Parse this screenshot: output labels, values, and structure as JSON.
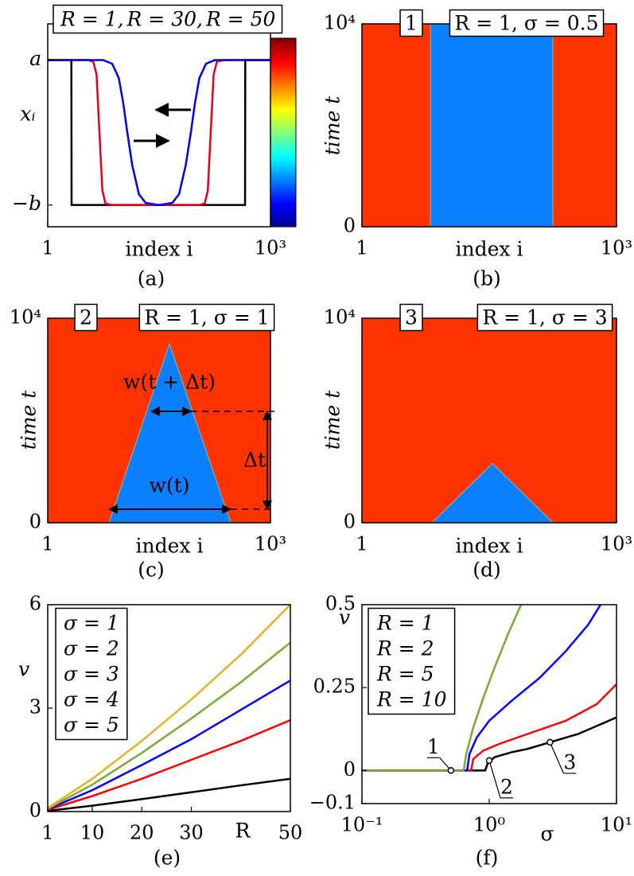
{
  "chart_data": [
    {
      "type": "line",
      "caption": "(a)",
      "xlabel": "index i",
      "ylabel": "xᵢ",
      "xlim": [
        1,
        1000
      ],
      "xticks": [
        1,
        {
          "value": 1000,
          "label": "10³"
        }
      ],
      "ylim": [
        -1.3,
        1.5
      ],
      "yticks": [
        {
          "value": 1,
          "label": "a"
        },
        {
          "value": -1,
          "label": "−b"
        }
      ],
      "ytick_colors": [
        "#e8001a",
        "#2a7fd4"
      ],
      "legend": "inline-top",
      "series": [
        {
          "name": "R = 1,",
          "color": "#000000",
          "x": [
            1,
            107,
            108,
            886,
            887,
            1000
          ],
          "values": [
            1,
            1,
            -1,
            -1,
            1,
            1
          ]
        },
        {
          "name": "R = 30,",
          "color": "#e8001a",
          "x": [
            1,
            180,
            205,
            220,
            233,
            246,
            260,
            290,
            680,
            705,
            719,
            732,
            745,
            760,
            790,
            1000
          ],
          "values": [
            1,
            1,
            0.98,
            0.8,
            0,
            -0.8,
            -0.98,
            -1,
            -1,
            -0.98,
            -0.8,
            0,
            0.8,
            0.98,
            1,
            1
          ]
        },
        {
          "name": "R = 50",
          "color": "#0000ee",
          "x": [
            1,
            250,
            290,
            320,
            340,
            358,
            380,
            410,
            440,
            500,
            560,
            590,
            620,
            643,
            661,
            681,
            711,
            750,
            1000
          ],
          "values": [
            1,
            1,
            0.95,
            0.75,
            0.4,
            0,
            -0.45,
            -0.85,
            -0.97,
            -1,
            -0.97,
            -0.85,
            -0.45,
            0,
            0.4,
            0.75,
            0.95,
            1,
            1
          ]
        }
      ]
    },
    {
      "type": "region",
      "caption": "(b)",
      "xlabel": "index i",
      "ylabel": "time t",
      "labels": [
        "1",
        "R = 1, σ = 0.5"
      ],
      "xlim": [
        1,
        1000
      ],
      "xticks": [
        1,
        {
          "value": 1000,
          "label": "10³"
        }
      ],
      "ylim": [
        0,
        10000
      ],
      "yticks": [
        0,
        {
          "value": 10000,
          "label": "10⁴"
        }
      ],
      "background_color": "#ff3300",
      "regions": [
        {
          "color": "#0a80ff",
          "x": [
            270,
            750,
            750,
            270
          ],
          "y": [
            0,
            0,
            10000,
            10000
          ]
        }
      ]
    },
    {
      "type": "region",
      "caption": "(c)",
      "xlabel": "index i",
      "ylabel": "time t",
      "labels": [
        "2",
        "R = 1, σ = 1"
      ],
      "annotations": [
        "w(t + Δt)",
        "w(t)",
        "Δt"
      ],
      "xlim": [
        1,
        1000
      ],
      "xticks": [
        1,
        {
          "value": 1000,
          "label": "10³"
        }
      ],
      "ylim": [
        0,
        10000
      ],
      "yticks": [
        0,
        {
          "value": 10000,
          "label": "10⁴"
        }
      ],
      "background_color": "#ff3300",
      "regions": [
        {
          "color": "#0a80ff",
          "x": [
            276,
            822,
            547
          ],
          "y": [
            0,
            0,
            8750
          ]
        }
      ]
    },
    {
      "type": "region",
      "caption": "(d)",
      "xlabel": "index i",
      "ylabel": "time t",
      "labels": [
        "3",
        "R = 1, σ = 3"
      ],
      "xlim": [
        1,
        1000
      ],
      "xticks": [
        1,
        {
          "value": 1000,
          "label": "10³"
        }
      ],
      "ylim": [
        0,
        10000
      ],
      "yticks": [
        0,
        {
          "value": 10000,
          "label": "10⁴"
        }
      ],
      "background_color": "#ff3300",
      "regions": [
        {
          "color": "#0a80ff",
          "x": [
            276,
            751,
            513
          ],
          "y": [
            0,
            0,
            2900
          ]
        }
      ]
    },
    {
      "type": "line",
      "caption": "(e)",
      "xlabel": "R",
      "ylabel": "v",
      "legend": "upper left",
      "xlim": [
        1,
        50
      ],
      "xticks": [
        1,
        10,
        20,
        30,
        50
      ],
      "ylim": [
        0,
        6
      ],
      "yticks": [
        0,
        3,
        6
      ],
      "x": [
        1,
        10,
        20,
        30,
        40,
        50
      ],
      "series": [
        {
          "name": "σ = 1",
          "color": "#000000",
          "values": [
            0.02,
            0.17,
            0.36,
            0.56,
            0.76,
            0.95
          ]
        },
        {
          "name": "σ = 2",
          "color": "#ff0000",
          "values": [
            0.05,
            0.45,
            0.95,
            1.5,
            2.05,
            2.65
          ]
        },
        {
          "name": "σ = 3",
          "color": "#0000ff",
          "values": [
            0.07,
            0.62,
            1.35,
            2.1,
            2.95,
            3.8
          ]
        },
        {
          "name": "σ = 4",
          "color": "#77ac30",
          "values": [
            0.08,
            0.78,
            1.7,
            2.7,
            3.75,
            4.9
          ]
        },
        {
          "name": "σ = 5",
          "color": "#edb120",
          "values": [
            0.1,
            0.95,
            2.05,
            3.25,
            4.55,
            6.0
          ]
        }
      ]
    },
    {
      "type": "line",
      "caption": "(f)",
      "xlabel": "σ",
      "ylabel": "v",
      "legend": "upper left",
      "xlog": true,
      "xlim": [
        0.1,
        10
      ],
      "xticks": [
        {
          "value": 0.1,
          "label": "10⁻¹"
        },
        {
          "value": 1,
          "label": "10⁰"
        },
        {
          "value": 10,
          "label": "10¹"
        }
      ],
      "ylim": [
        -0.1,
        0.5
      ],
      "yticks": [
        {
          "value": -0.1,
          "label": "−0.1"
        },
        0,
        0.25,
        0.5
      ],
      "series": [
        {
          "name": "R = 1",
          "color": "#000000",
          "x": [
            0.1,
            0.93,
            0.97,
            1.1,
            1.5,
            2,
            3,
            5,
            10
          ],
          "values": [
            0,
            0,
            0.02,
            0.04,
            0.055,
            0.065,
            0.085,
            0.11,
            0.16
          ]
        },
        {
          "name": "R = 2",
          "color": "#ff0000",
          "x": [
            0.1,
            0.72,
            0.75,
            0.9,
            1.2,
            2,
            4,
            7,
            10
          ],
          "values": [
            0,
            0,
            0.035,
            0.06,
            0.08,
            0.11,
            0.15,
            0.2,
            0.26
          ]
        },
        {
          "name": "R = 5",
          "color": "#0000ff",
          "x": [
            0.1,
            0.67,
            0.7,
            0.8,
            1,
            1.5,
            2.5,
            4,
            6,
            7.5
          ],
          "values": [
            0,
            0,
            0.05,
            0.1,
            0.15,
            0.21,
            0.28,
            0.36,
            0.44,
            0.5
          ]
        },
        {
          "name": "R = 10",
          "color": "#77ac30",
          "x": [
            0.1,
            0.63,
            0.66,
            0.75,
            0.9,
            1.1,
            1.4,
            1.78
          ],
          "values": [
            0,
            0,
            0.05,
            0.13,
            0.22,
            0.31,
            0.41,
            0.5
          ]
        }
      ],
      "markers": {
        "x": [
          0.5,
          1,
          3
        ],
        "y": [
          0,
          0.03,
          0.085
        ],
        "labels": [
          "1",
          "2",
          "3"
        ]
      }
    }
  ]
}
